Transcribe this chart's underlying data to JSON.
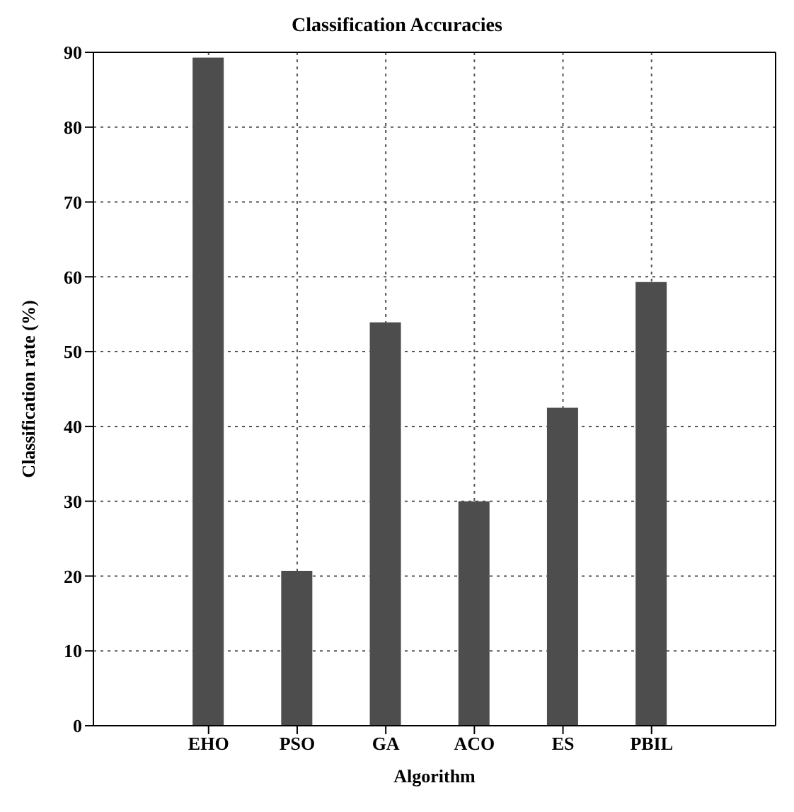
{
  "chart_data": {
    "type": "bar",
    "title": "Classification Accuracies",
    "xlabel": "Algorithm",
    "ylabel": "Classification rate (%)",
    "categories": [
      "EHO",
      "PSO",
      "GA",
      "ACO",
      "ES",
      "PBIL"
    ],
    "values": [
      89.3,
      20.7,
      53.9,
      30,
      42.5,
      59.3
    ],
    "color": "#4d4d4d",
    "ylim": [
      0,
      90
    ],
    "yticks": [
      0,
      10,
      20,
      30,
      40,
      50,
      60,
      70,
      80,
      90
    ],
    "grid": true
  }
}
